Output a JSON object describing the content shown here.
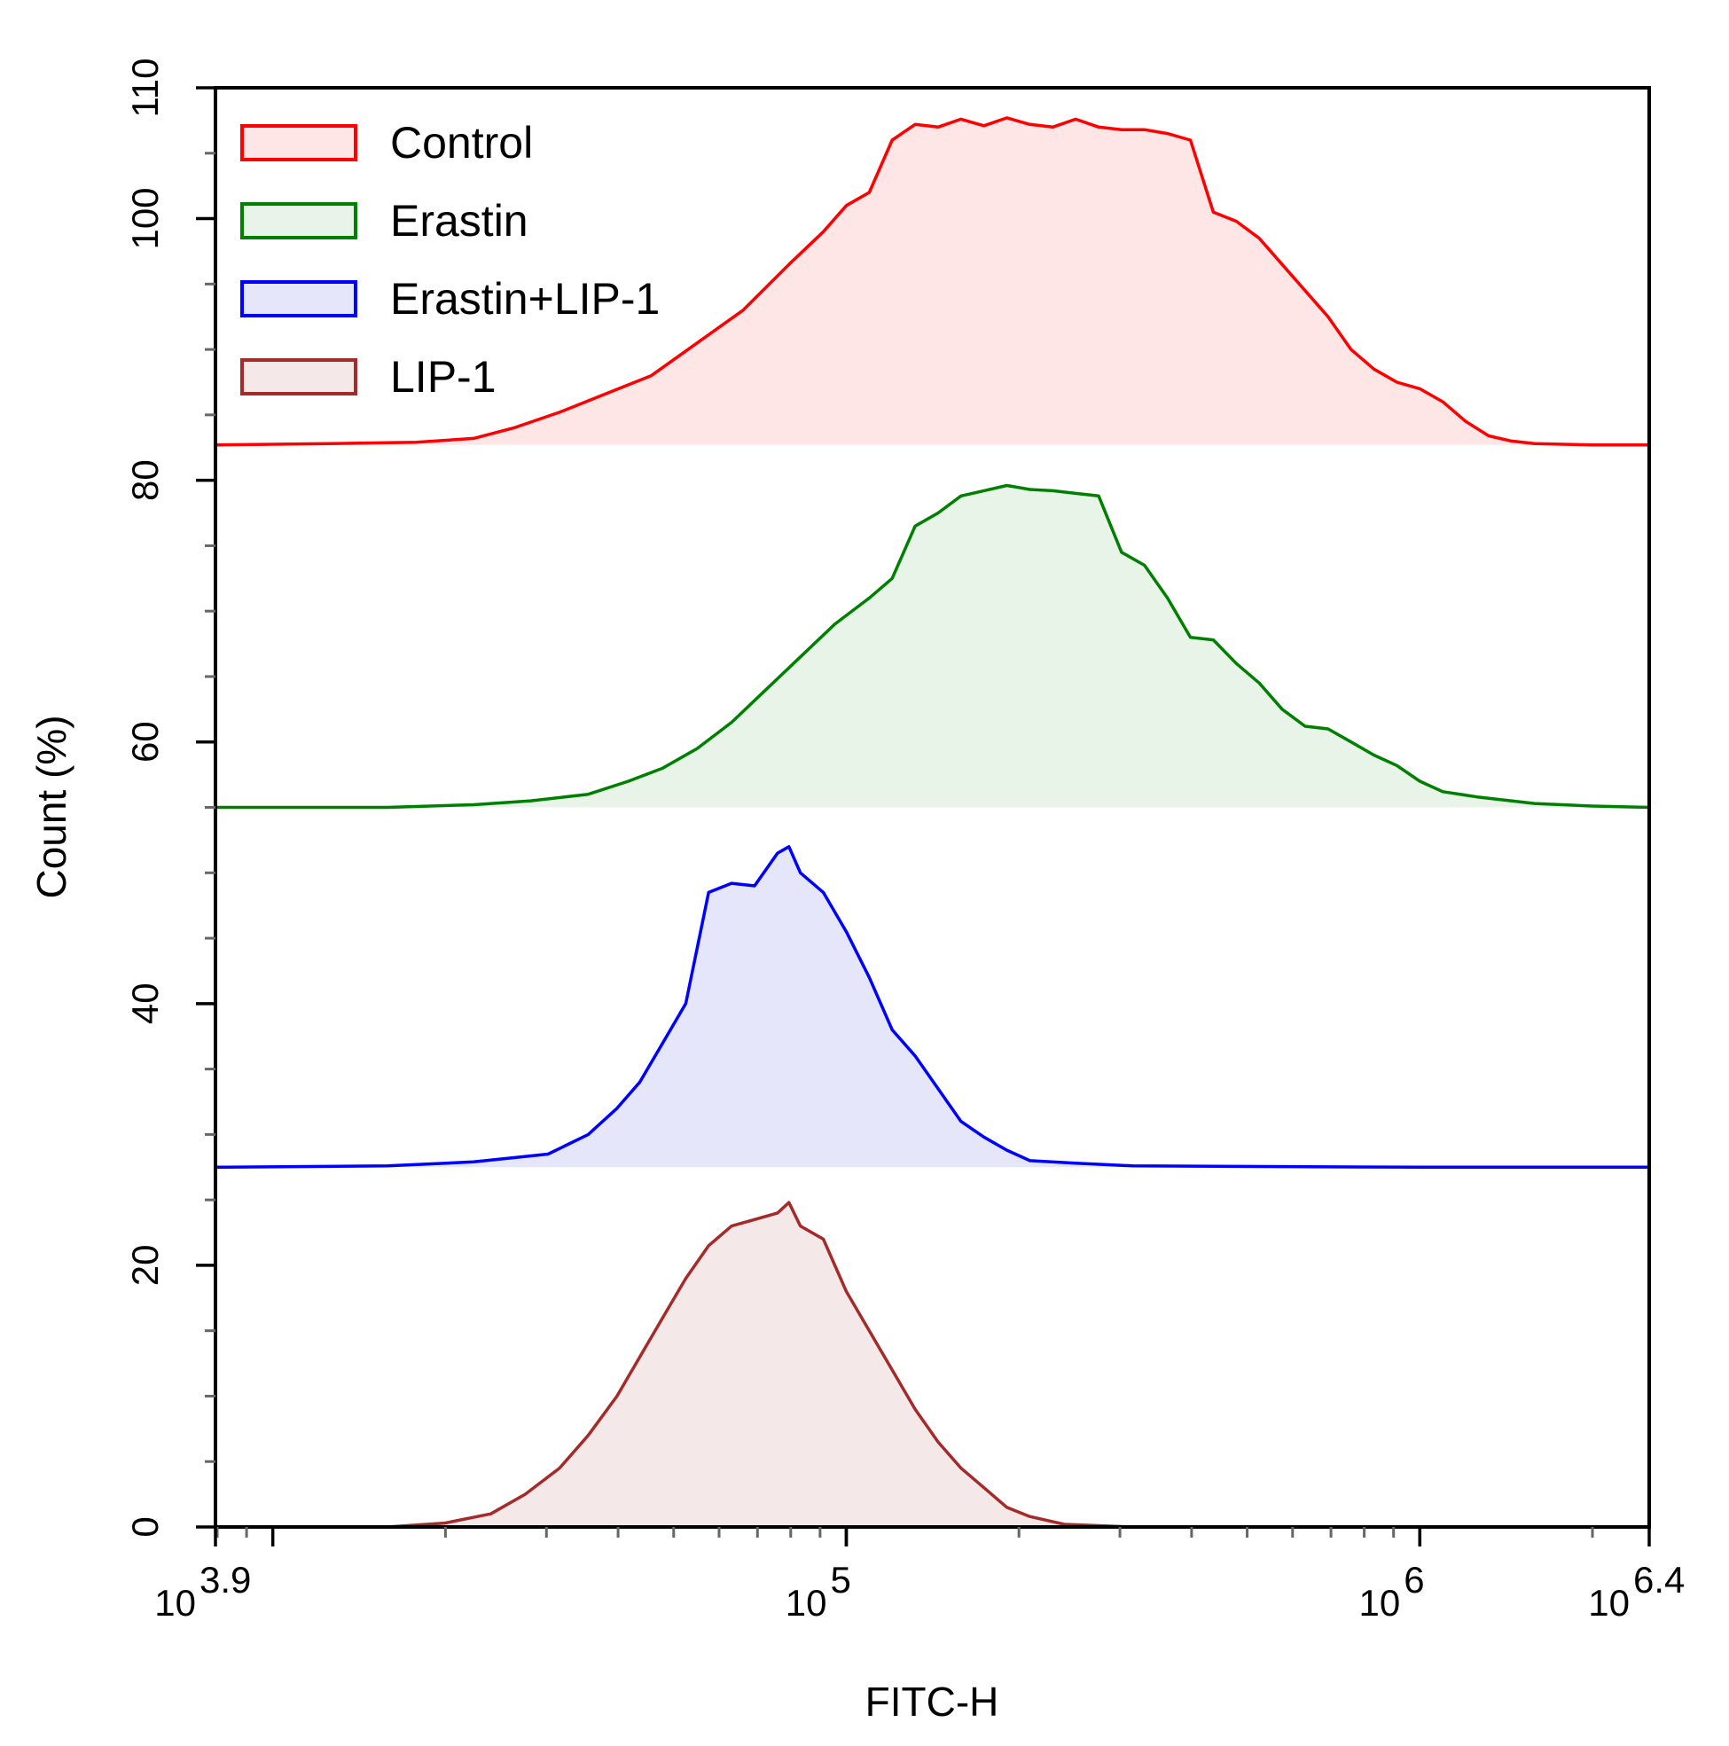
{
  "chart_data": {
    "type": "area",
    "title": "",
    "xlabel": "FITC-H",
    "ylabel": "Count  (%)",
    "x_scale": "log10",
    "x_range": [
      3.9,
      6.4
    ],
    "ylim": [
      0,
      110
    ],
    "y_ticks": [
      0,
      20,
      40,
      60,
      80,
      100,
      110
    ],
    "y_tick_labels": [
      "0",
      "20",
      "40",
      "60",
      "80",
      "100",
      "110"
    ],
    "x_ticks": [
      {
        "exp": 3.9,
        "base": "10",
        "sup": "3.9"
      },
      {
        "exp": 5,
        "base": "10",
        "sup": "5"
      },
      {
        "exp": 6,
        "base": "10",
        "sup": "6"
      },
      {
        "exp": 6.4,
        "base": "10",
        "sup": "6.4"
      }
    ],
    "grid": false,
    "legend_position": "top-left",
    "series": [
      {
        "name": "Control",
        "color": "#ff0000",
        "fill": "#ffe6e6",
        "offset": 82.7,
        "points": [
          [
            3.9,
            82.7
          ],
          [
            4.1,
            82.8
          ],
          [
            4.25,
            82.9
          ],
          [
            4.35,
            83.2
          ],
          [
            4.42,
            84
          ],
          [
            4.5,
            85.2
          ],
          [
            4.58,
            86.6
          ],
          [
            4.66,
            88
          ],
          [
            4.74,
            90.5
          ],
          [
            4.82,
            93
          ],
          [
            4.9,
            96.5
          ],
          [
            4.96,
            99
          ],
          [
            5.0,
            101
          ],
          [
            5.04,
            102
          ],
          [
            5.08,
            106
          ],
          [
            5.12,
            107.2
          ],
          [
            5.16,
            107
          ],
          [
            5.2,
            107.6
          ],
          [
            5.24,
            107.1
          ],
          [
            5.28,
            107.7
          ],
          [
            5.32,
            107.2
          ],
          [
            5.36,
            107
          ],
          [
            5.4,
            107.6
          ],
          [
            5.44,
            107
          ],
          [
            5.48,
            106.8
          ],
          [
            5.52,
            106.8
          ],
          [
            5.56,
            106.5
          ],
          [
            5.6,
            106
          ],
          [
            5.64,
            100.5
          ],
          [
            5.68,
            99.8
          ],
          [
            5.72,
            98.5
          ],
          [
            5.76,
            96.5
          ],
          [
            5.8,
            94.5
          ],
          [
            5.84,
            92.5
          ],
          [
            5.88,
            90
          ],
          [
            5.92,
            88.5
          ],
          [
            5.96,
            87.5
          ],
          [
            6.0,
            87
          ],
          [
            6.04,
            86
          ],
          [
            6.08,
            84.5
          ],
          [
            6.12,
            83.4
          ],
          [
            6.16,
            83
          ],
          [
            6.2,
            82.8
          ],
          [
            6.3,
            82.7
          ],
          [
            6.4,
            82.7
          ]
        ]
      },
      {
        "name": "Erastin",
        "color": "#008000",
        "fill": "#e8f4e8",
        "offset": 55,
        "points": [
          [
            3.9,
            55
          ],
          [
            4.2,
            55
          ],
          [
            4.35,
            55.2
          ],
          [
            4.45,
            55.5
          ],
          [
            4.55,
            56
          ],
          [
            4.62,
            57
          ],
          [
            4.68,
            58
          ],
          [
            4.74,
            59.5
          ],
          [
            4.8,
            61.5
          ],
          [
            4.86,
            64
          ],
          [
            4.92,
            66.5
          ],
          [
            4.98,
            69
          ],
          [
            5.04,
            71
          ],
          [
            5.08,
            72.5
          ],
          [
            5.12,
            76.5
          ],
          [
            5.16,
            77.5
          ],
          [
            5.2,
            78.8
          ],
          [
            5.24,
            79.2
          ],
          [
            5.28,
            79.6
          ],
          [
            5.32,
            79.3
          ],
          [
            5.36,
            79.2
          ],
          [
            5.4,
            79
          ],
          [
            5.44,
            78.8
          ],
          [
            5.48,
            74.5
          ],
          [
            5.52,
            73.5
          ],
          [
            5.56,
            71
          ],
          [
            5.6,
            68
          ],
          [
            5.64,
            67.8
          ],
          [
            5.68,
            66
          ],
          [
            5.72,
            64.5
          ],
          [
            5.76,
            62.5
          ],
          [
            5.8,
            61.2
          ],
          [
            5.84,
            61
          ],
          [
            5.88,
            60
          ],
          [
            5.92,
            59
          ],
          [
            5.96,
            58.2
          ],
          [
            6.0,
            57
          ],
          [
            6.04,
            56.2
          ],
          [
            6.1,
            55.8
          ],
          [
            6.2,
            55.3
          ],
          [
            6.3,
            55.1
          ],
          [
            6.4,
            55
          ]
        ]
      },
      {
        "name": "Erastin+LIP-1",
        "color": "#0000ff",
        "fill": "#e6e6fa",
        "offset": 27.5,
        "points": [
          [
            3.9,
            27.5
          ],
          [
            4.2,
            27.6
          ],
          [
            4.35,
            27.9
          ],
          [
            4.48,
            28.5
          ],
          [
            4.55,
            30
          ],
          [
            4.6,
            32
          ],
          [
            4.64,
            34
          ],
          [
            4.68,
            37
          ],
          [
            4.72,
            40
          ],
          [
            4.76,
            48.5
          ],
          [
            4.8,
            49.2
          ],
          [
            4.84,
            49
          ],
          [
            4.88,
            51.5
          ],
          [
            4.9,
            52
          ],
          [
            4.92,
            50
          ],
          [
            4.96,
            48.5
          ],
          [
            5.0,
            45.5
          ],
          [
            5.04,
            42
          ],
          [
            5.08,
            38
          ],
          [
            5.12,
            36
          ],
          [
            5.16,
            33.5
          ],
          [
            5.2,
            31
          ],
          [
            5.24,
            29.8
          ],
          [
            5.28,
            28.8
          ],
          [
            5.32,
            28
          ],
          [
            5.4,
            27.8
          ],
          [
            5.5,
            27.6
          ],
          [
            6.0,
            27.5
          ],
          [
            6.4,
            27.5
          ]
        ]
      },
      {
        "name": "LIP-1",
        "color": "#a52a2a",
        "fill": "#f5e8e8",
        "offset": 0,
        "points": [
          [
            3.9,
            0
          ],
          [
            4.2,
            0
          ],
          [
            4.3,
            0.3
          ],
          [
            4.38,
            1
          ],
          [
            4.44,
            2.5
          ],
          [
            4.5,
            4.5
          ],
          [
            4.55,
            7
          ],
          [
            4.6,
            10
          ],
          [
            4.64,
            13
          ],
          [
            4.68,
            16
          ],
          [
            4.72,
            19
          ],
          [
            4.76,
            21.5
          ],
          [
            4.8,
            23
          ],
          [
            4.84,
            23.5
          ],
          [
            4.88,
            24
          ],
          [
            4.9,
            24.8
          ],
          [
            4.92,
            23
          ],
          [
            4.96,
            22
          ],
          [
            5.0,
            18
          ],
          [
            5.04,
            15
          ],
          [
            5.08,
            12
          ],
          [
            5.12,
            9
          ],
          [
            5.16,
            6.5
          ],
          [
            5.2,
            4.5
          ],
          [
            5.24,
            3
          ],
          [
            5.28,
            1.5
          ],
          [
            5.32,
            0.8
          ],
          [
            5.38,
            0.2
          ],
          [
            5.5,
            0
          ],
          [
            6.4,
            0
          ]
        ]
      }
    ]
  }
}
